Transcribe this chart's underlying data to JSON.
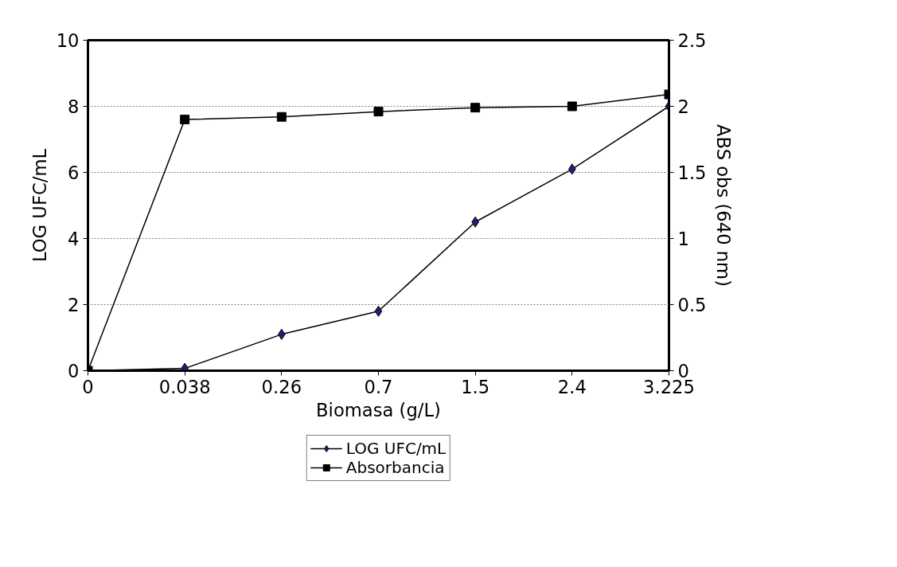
{
  "chart_data": {
    "type": "line",
    "xlabel": "Biomasa (g/L)",
    "ylabel": "LOG UFC/mL",
    "y2label": "ABS obs (640 nm)",
    "categories": [
      "0",
      "0.038",
      "0.26",
      "0.7",
      "1.5",
      "2.4",
      "3.225"
    ],
    "series": [
      {
        "name": "LOG UFC/mL",
        "color": "#1f1f7a",
        "marker": "diamond",
        "values": [
          0,
          0.07,
          1.1,
          1.8,
          4.5,
          6.1,
          8.0
        ]
      },
      {
        "name": "Absorbancia",
        "color": "#000000",
        "marker": "square",
        "axis": "y2",
        "values": [
          0,
          1.9,
          1.92,
          1.96,
          1.99,
          2.0,
          2.09
        ]
      }
    ],
    "ylim": [
      0,
      10
    ],
    "yticks": [
      0,
      2,
      4,
      6,
      8,
      10
    ],
    "y2lim": [
      0,
      2.5
    ],
    "y2ticks": [
      0,
      0.5,
      1,
      1.5,
      2,
      2.5
    ],
    "grid": "y",
    "legend": "bottom",
    "line_style": "solid"
  }
}
